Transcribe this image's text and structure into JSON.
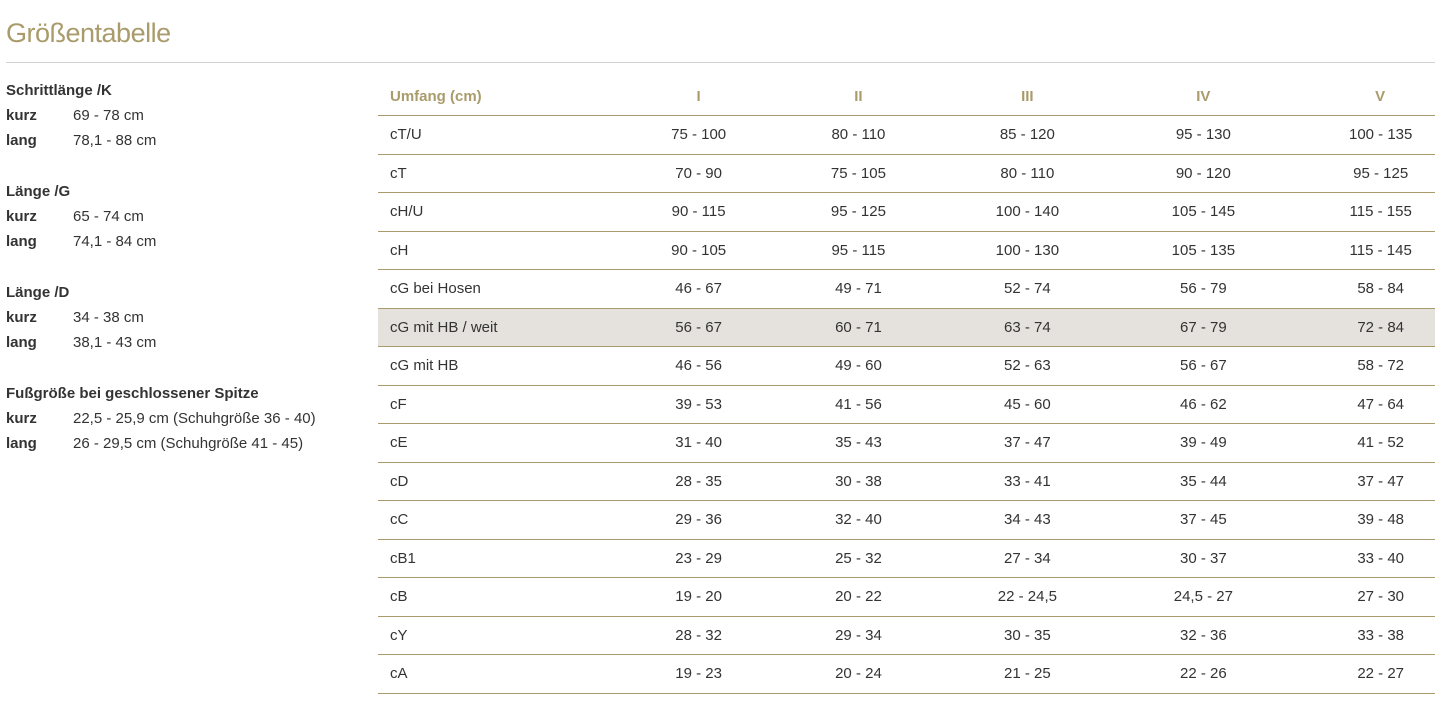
{
  "title": "Größentabelle",
  "groups": [
    {
      "heading": "Schrittlänge /K",
      "rows": [
        {
          "k": "kurz",
          "v": "69 - 78 cm"
        },
        {
          "k": "lang",
          "v": "78,1 - 88 cm"
        }
      ]
    },
    {
      "heading": "Länge /G",
      "rows": [
        {
          "k": "kurz",
          "v": "65 - 74 cm"
        },
        {
          "k": "lang",
          "v": "74,1 - 84 cm"
        }
      ]
    },
    {
      "heading": "Länge /D",
      "rows": [
        {
          "k": "kurz",
          "v": "34 - 38 cm"
        },
        {
          "k": "lang",
          "v": "38,1 - 43 cm"
        }
      ]
    },
    {
      "heading": "Fußgröße bei geschlossener Spitze",
      "rows": [
        {
          "k": "kurz",
          "v": "22,5 - 25,9 cm (Schuhgröße 36 - 40)"
        },
        {
          "k": "lang",
          "v": "26 - 29,5 cm (Schuhgröße 41 - 45)"
        }
      ]
    }
  ],
  "table": {
    "headers": [
      "Umfang (cm)",
      "I",
      "II",
      "III",
      "IV",
      "V"
    ],
    "highlight_row": 5,
    "rows": [
      [
        "cT/U",
        "75 - 100",
        "80 - 110",
        "85 - 120",
        "95 - 130",
        "100 - 135"
      ],
      [
        "cT",
        "70 - 90",
        "75 - 105",
        "80 - 110",
        "90 - 120",
        "95 - 125"
      ],
      [
        "cH/U",
        "90 - 115",
        "95 - 125",
        "100 - 140",
        "105 - 145",
        "115 - 155"
      ],
      [
        "cH",
        "90 - 105",
        "95 - 115",
        "100 - 130",
        "105 - 135",
        "115 - 145"
      ],
      [
        "cG bei Hosen",
        "46 - 67",
        "49 - 71",
        "52 - 74",
        "56 - 79",
        "58 - 84"
      ],
      [
        "cG mit HB / weit",
        "56 - 67",
        "60 - 71",
        "63 - 74",
        "67 - 79",
        "72 - 84"
      ],
      [
        "cG mit HB",
        "46 - 56",
        "49 - 60",
        "52 - 63",
        "56 - 67",
        "58 - 72"
      ],
      [
        "cF",
        "39 - 53",
        "41 - 56",
        "45 - 60",
        "46 - 62",
        "47 - 64"
      ],
      [
        "cE",
        "31 - 40",
        "35 - 43",
        "37 - 47",
        "39 - 49",
        "41 - 52"
      ],
      [
        "cD",
        "28 - 35",
        "30 - 38",
        "33 - 41",
        "35 - 44",
        "37 - 47"
      ],
      [
        "cC",
        "29 - 36",
        "32 - 40",
        "34 - 43",
        "37 - 45",
        "39 - 48"
      ],
      [
        "cB1",
        "23 - 29",
        "25 - 32",
        "27 - 34",
        "30 - 37",
        "33 - 40"
      ],
      [
        "cB",
        "19 - 20",
        "20 - 22",
        "22 - 24,5",
        "24,5 - 27",
        "27 - 30"
      ],
      [
        "cY",
        "28 - 32",
        "29 - 34",
        "30 - 35",
        "32 - 36",
        "33 - 38"
      ],
      [
        "cA",
        "19 - 23",
        "20 - 24",
        "21 - 25",
        "22 - 26",
        "22 - 27"
      ]
    ]
  }
}
